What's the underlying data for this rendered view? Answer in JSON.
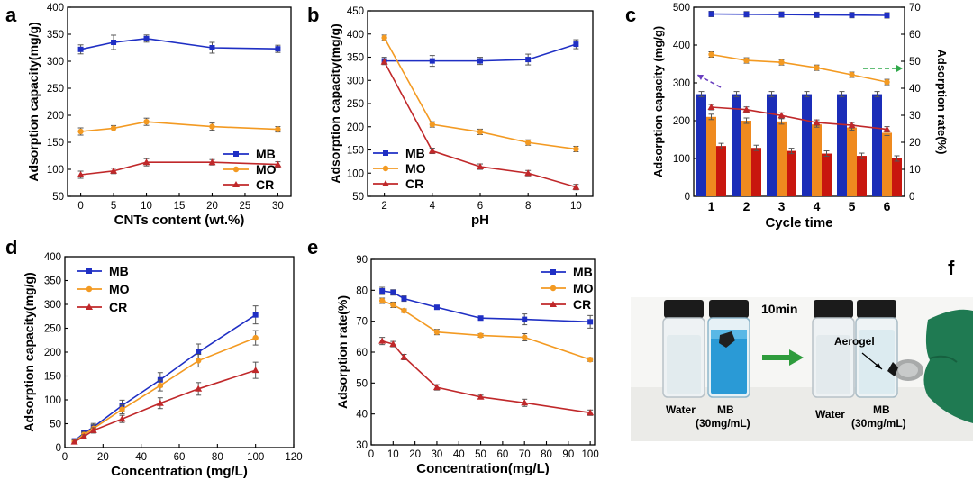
{
  "colors": {
    "MB": "#1f2fc4",
    "MO": "#f39a22",
    "CR": "#c0282a"
  },
  "panels": {
    "a": "a",
    "b": "b",
    "c": "c",
    "d": "d",
    "e": "e",
    "f": "f"
  },
  "chart_data": [
    {
      "id": "a",
      "type": "line",
      "xlabel": "CNTs content (wt.%)",
      "ylabel": "Adsorption capacity(mg/g)",
      "xlim": [
        -2,
        32
      ],
      "ylim": [
        50,
        400
      ],
      "xticks": [
        0,
        5,
        10,
        15,
        20,
        25,
        30
      ],
      "yticks": [
        50,
        100,
        150,
        200,
        250,
        300,
        350,
        400
      ],
      "x": [
        0,
        5,
        10,
        20,
        30
      ],
      "legend_pos": "bottom-right",
      "series": [
        {
          "name": "MB",
          "values": [
            322,
            335,
            342,
            325,
            323
          ]
        },
        {
          "name": "MO",
          "values": [
            170,
            176,
            188,
            179,
            174
          ]
        },
        {
          "name": "CR",
          "values": [
            90,
            97,
            113,
            113,
            109
          ]
        }
      ]
    },
    {
      "id": "b",
      "type": "line",
      "xlabel": "pH",
      "ylabel": "Adsorption capacity(mg/g)",
      "xlim": [
        1.3,
        10.7
      ],
      "ylim": [
        50,
        450
      ],
      "xticks": [
        2,
        4,
        6,
        8,
        10
      ],
      "yticks": [
        50,
        100,
        150,
        200,
        250,
        300,
        350,
        400,
        450
      ],
      "x": [
        2,
        4,
        6,
        8,
        10
      ],
      "legend_pos": "middle-left",
      "series": [
        {
          "name": "MB",
          "values": [
            342,
            342,
            342,
            345,
            378
          ]
        },
        {
          "name": "MO",
          "values": [
            392,
            205,
            189,
            166,
            152
          ]
        },
        {
          "name": "CR",
          "values": [
            340,
            148,
            114,
            100,
            70
          ]
        }
      ]
    },
    {
      "id": "c",
      "type": "bar",
      "xlabel": "Cycle time",
      "ylabel": "Adsorption capacity (mg/g)",
      "ylabel_right": "Adsorption rate(%)",
      "categories": [
        "1",
        "2",
        "3",
        "4",
        "5",
        "6"
      ],
      "ylim": [
        0,
        500
      ],
      "yticks": [
        0,
        100,
        200,
        300,
        400,
        500
      ],
      "ylim_right": [
        0,
        70
      ],
      "yticks_right": [
        0,
        10,
        20,
        30,
        40,
        50,
        60,
        70
      ],
      "bars": [
        {
          "name": "MB",
          "values": [
            270,
            270,
            270,
            270,
            270,
            270
          ]
        },
        {
          "name": "MO",
          "values": [
            210,
            200,
            198,
            190,
            182,
            168
          ]
        },
        {
          "name": "CR",
          "values": [
            133,
            128,
            120,
            113,
            107,
            100
          ]
        }
      ],
      "rate_series": [
        {
          "name": "MB",
          "values": [
            67.5,
            67.4,
            67.3,
            67.2,
            67.1,
            67.0
          ]
        },
        {
          "name": "MO",
          "values": [
            52.5,
            50.3,
            49.6,
            47.6,
            45.0,
            42.3
          ]
        },
        {
          "name": "CR",
          "values": [
            33.0,
            32.1,
            29.9,
            27.3,
            26.3,
            24.8
          ]
        }
      ]
    },
    {
      "id": "d",
      "type": "line",
      "xlabel": "Concentration (mg/L)",
      "ylabel": "Adsorption capacity(mg/g)",
      "xlim": [
        0,
        120
      ],
      "ylim": [
        0,
        400
      ],
      "xticks": [
        0,
        20,
        40,
        60,
        80,
        100,
        120
      ],
      "yticks": [
        0,
        50,
        100,
        150,
        200,
        250,
        300,
        350,
        400
      ],
      "x": [
        5,
        10,
        15,
        30,
        50,
        70,
        100
      ],
      "legend_pos": "top-left",
      "series": [
        {
          "name": "MB",
          "values": [
            14,
            30,
            43,
            88,
            142,
            200,
            278
          ]
        },
        {
          "name": "MO",
          "values": [
            13,
            27,
            40,
            80,
            130,
            182,
            230
          ]
        },
        {
          "name": "CR",
          "values": [
            12,
            23,
            36,
            60,
            93,
            123,
            162
          ]
        }
      ]
    },
    {
      "id": "e",
      "type": "line",
      "xlabel": "Concentration(mg/L)",
      "ylabel": "Adsorption rate(%)",
      "xlim": [
        0,
        102
      ],
      "ylim": [
        30,
        90
      ],
      "xticks": [
        0,
        10,
        20,
        30,
        40,
        50,
        60,
        70,
        80,
        90,
        100
      ],
      "yticks": [
        30,
        40,
        50,
        60,
        70,
        80,
        90
      ],
      "x": [
        5,
        10,
        15,
        30,
        50,
        70,
        100
      ],
      "legend_pos": "top-right",
      "series": [
        {
          "name": "MB",
          "values": [
            79.8,
            79.3,
            77.3,
            74.5,
            71.0,
            70.6,
            69.8
          ]
        },
        {
          "name": "MO",
          "values": [
            76.6,
            75.3,
            73.4,
            66.5,
            65.4,
            64.8,
            57.6
          ]
        },
        {
          "name": "CR",
          "values": [
            63.6,
            62.6,
            58.4,
            48.6,
            45.5,
            43.6,
            40.4
          ]
        }
      ]
    }
  ],
  "photo": {
    "arrow_label": "10min",
    "vial_labels_before": [
      "Water",
      "MB",
      "(30mg/mL)"
    ],
    "vial_labels_after": [
      "Water",
      "MB",
      "(30mg/mL)"
    ],
    "aerogel_label": "Aerogel"
  }
}
